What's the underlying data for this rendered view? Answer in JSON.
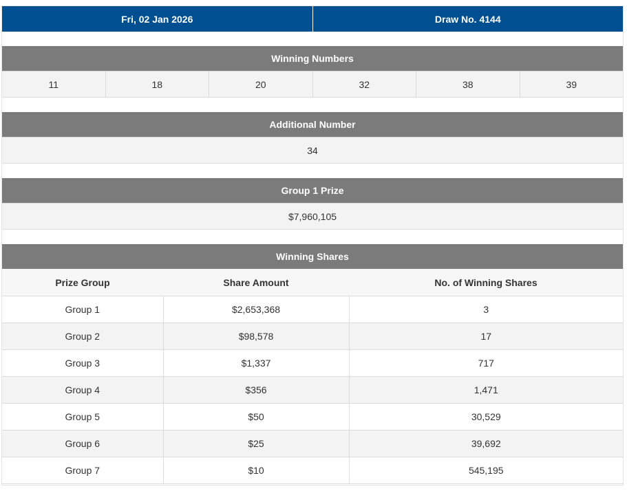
{
  "header": {
    "date": "Fri, 02 Jan 2026",
    "draw": "Draw No. 4144"
  },
  "winning_numbers": {
    "title": "Winning Numbers",
    "numbers": [
      "11",
      "18",
      "20",
      "32",
      "38",
      "39"
    ]
  },
  "additional_number": {
    "title": "Additional Number",
    "value": "34"
  },
  "group1_prize": {
    "title": "Group 1 Prize",
    "value": "$7,960,105"
  },
  "winning_shares": {
    "title": "Winning Shares",
    "columns": [
      "Prize Group",
      "Share Amount",
      "No. of Winning Shares"
    ],
    "rows": [
      [
        "Group 1",
        "$2,653,368",
        "3"
      ],
      [
        "Group 2",
        "$98,578",
        "17"
      ],
      [
        "Group 3",
        "$1,337",
        "717"
      ],
      [
        "Group 4",
        "$356",
        "1,471"
      ],
      [
        "Group 5",
        "$50",
        "30,529"
      ],
      [
        "Group 6",
        "$25",
        "39,692"
      ],
      [
        "Group 7",
        "$10",
        "545,195"
      ]
    ]
  }
}
